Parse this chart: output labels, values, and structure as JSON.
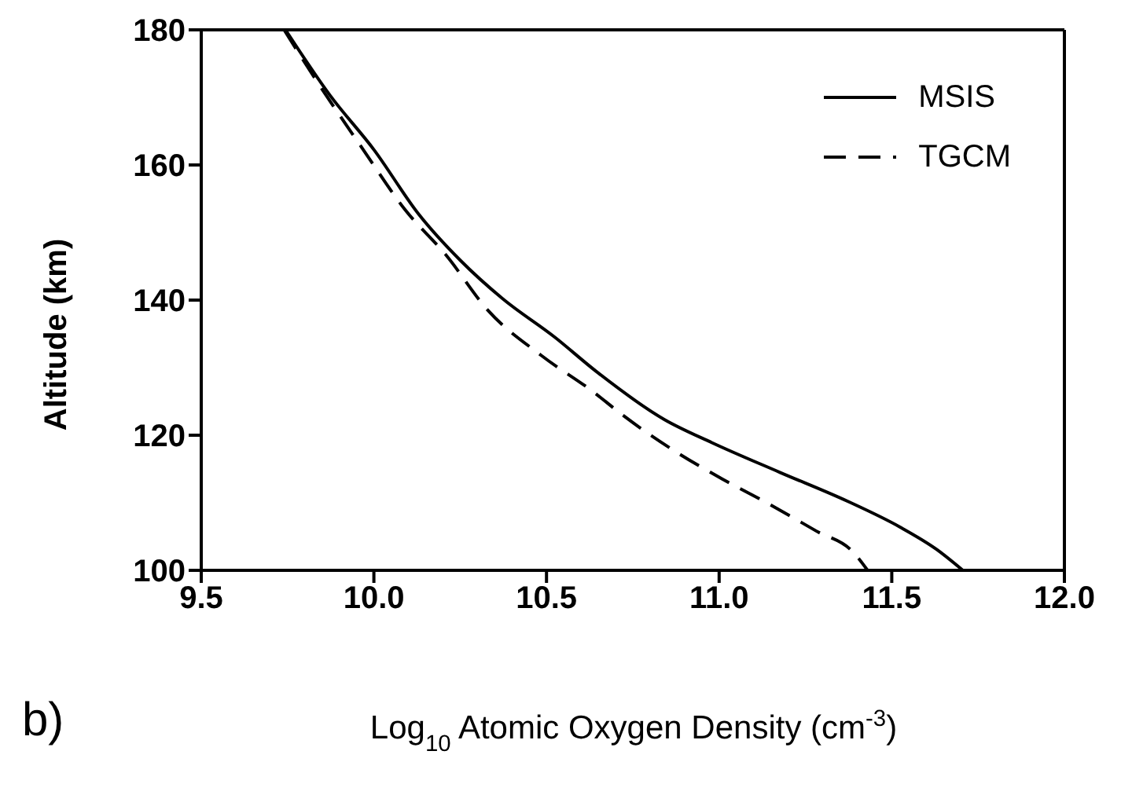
{
  "chart_data": {
    "type": "line",
    "xlabel": "Log$_{10}$ Atomic Oxygen Density (cm$^{-3}$)",
    "ylabel": "Altitude (km)",
    "annotations": [
      "b)"
    ],
    "xlim": [
      9.5,
      12.0
    ],
    "xticks": [
      {
        "value": 9.5,
        "label": "9.5"
      },
      {
        "value": 10,
        "label": "10.0"
      },
      {
        "value": 10.5,
        "label": "10.5"
      },
      {
        "value": 11,
        "label": "11.0"
      },
      {
        "value": 11.5,
        "label": "11.5"
      },
      {
        "value": 12,
        "label": "12.0"
      }
    ],
    "ylim": [
      100,
      180
    ],
    "yticks": [
      100,
      120,
      140,
      160,
      180
    ],
    "legend": "top right",
    "series": [
      {
        "name": "MSIS",
        "color": "#000000",
        "line_style": "solid",
        "x": [
          9.744,
          9.873,
          10.001,
          10.13,
          10.25,
          10.373,
          10.524,
          10.645,
          10.842,
          10.979,
          11.176,
          11.373,
          11.524,
          11.63,
          11.706
        ],
        "values": [
          180,
          170.3,
          162.2,
          152.7,
          145.9,
          140.2,
          134.5,
          129.4,
          122.3,
          118.9,
          114.5,
          110.2,
          106.4,
          103.1,
          100
        ]
      },
      {
        "name": "TGCM",
        "color": "#000000",
        "line_style": "dashed",
        "x": [
          9.74,
          9.827,
          9.97,
          10.09,
          10.21,
          10.33,
          10.485,
          10.636,
          10.72,
          10.873,
          11.01,
          11.145,
          11.282,
          11.388,
          11.43
        ],
        "values": [
          180,
          173,
          162.2,
          153.4,
          146.6,
          138.5,
          131.8,
          126.4,
          123,
          117.6,
          113.5,
          109.8,
          105.8,
          102.7,
          100
        ]
      }
    ]
  }
}
